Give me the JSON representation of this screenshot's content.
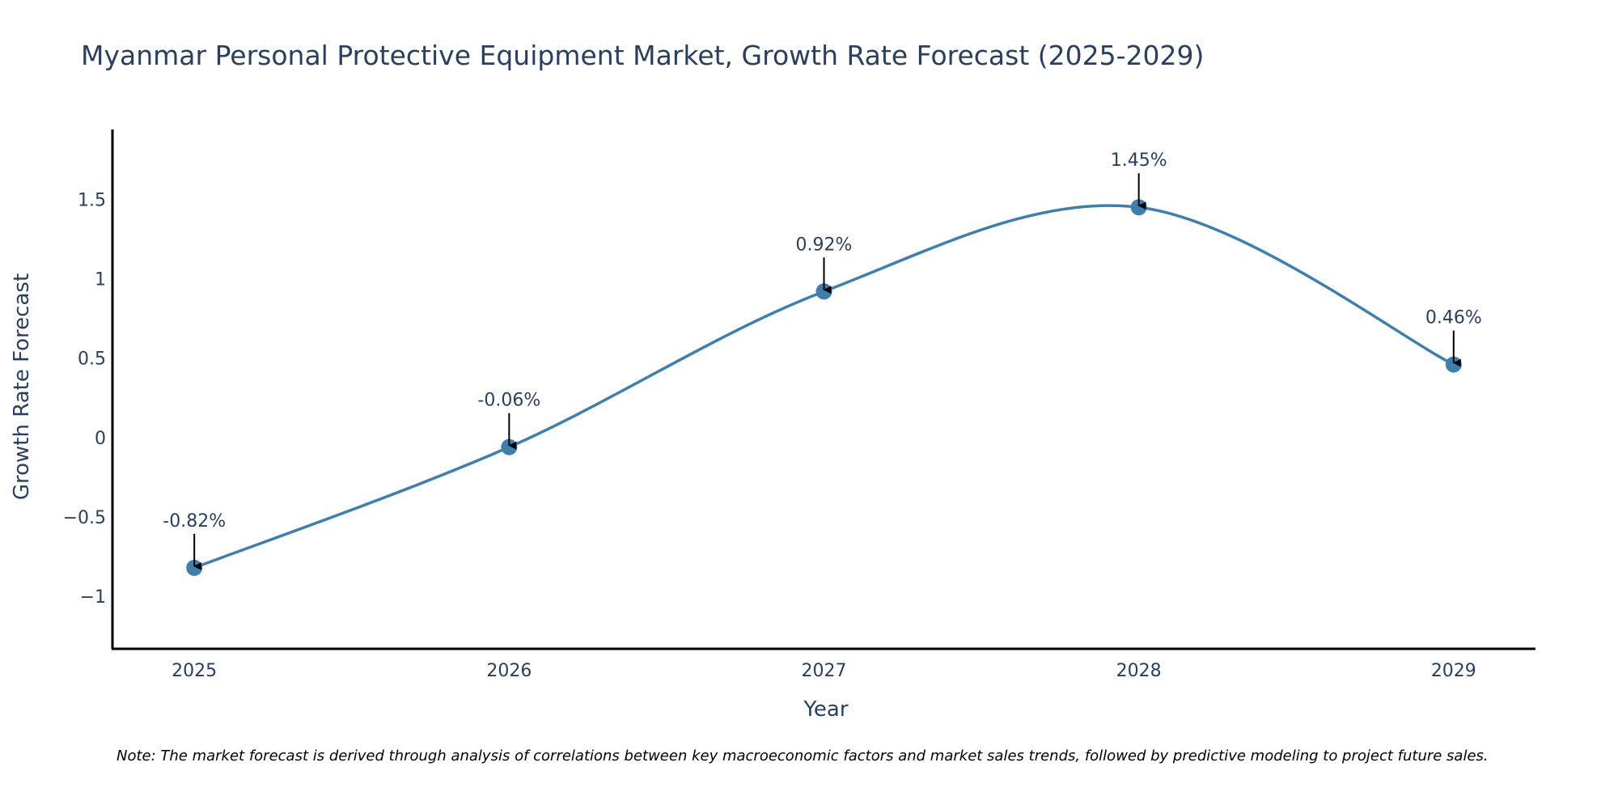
{
  "chart_data": {
    "type": "line",
    "title": "Myanmar Personal Protective Equipment Market, Growth Rate Forecast (2025-2029)",
    "xlabel": "Year",
    "ylabel": "Growth Rate Forecast",
    "categories": [
      "2025",
      "2026",
      "2027",
      "2028",
      "2029"
    ],
    "values": [
      -0.82,
      -0.06,
      0.92,
      1.45,
      0.46
    ],
    "data_labels": [
      "-0.82%",
      "-0.06%",
      "0.92%",
      "1.45%",
      "0.46%"
    ],
    "y_ticks": [
      -1,
      -0.5,
      0,
      0.5,
      1,
      1.5
    ],
    "y_tick_labels": [
      "−1",
      "−0.5",
      "0",
      "0.5",
      "1",
      "1.5"
    ],
    "ylim": [
      -1.33,
      1.94
    ],
    "x_range": [
      -0.26,
      4.26
    ],
    "grid": false,
    "line_shape": "spline",
    "colors": {
      "line": "#3f7fae",
      "marker": "#3f7fae",
      "axis": "#000000",
      "text": "#2a3f5f",
      "arrow": "#000000"
    },
    "note": "Note: The market forecast is derived through analysis of correlations between key macroeconomic factors and market sales trends, followed by predictive modeling to project future sales."
  }
}
